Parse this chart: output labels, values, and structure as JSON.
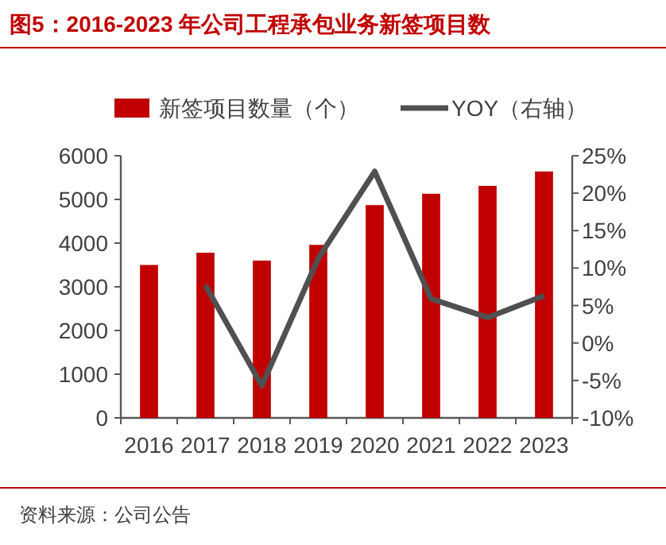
{
  "chart_data": {
    "type": "bar",
    "title": "图5：2016-2023 年公司工程承包业务新签项目数",
    "categories": [
      "2016",
      "2017",
      "2018",
      "2019",
      "2020",
      "2021",
      "2022",
      "2023"
    ],
    "series": [
      {
        "name": "新签项目数量（个）",
        "color": "#c00000",
        "values": [
          3500,
          3780,
          3600,
          3960,
          4870,
          5130,
          5310,
          5640
        ]
      },
      {
        "name": "YOY（右轴）",
        "type": "line",
        "axis": "y2",
        "color": "#505050",
        "values": [
          null,
          7.7,
          -5.7,
          11.3,
          22.9,
          5.9,
          3.4,
          6.3
        ]
      }
    ],
    "ylim": [
      0,
      6000
    ],
    "yticks": [
      0,
      1000,
      2000,
      3000,
      4000,
      5000,
      6000
    ],
    "y2lim": [
      -10,
      25
    ],
    "y2ticks": [
      {
        "value": -10,
        "label": "-10%"
      },
      {
        "value": -5,
        "label": "-5%"
      },
      {
        "value": 0,
        "label": "0%"
      },
      {
        "value": 5,
        "label": "5%"
      },
      {
        "value": 10,
        "label": "10%"
      },
      {
        "value": 15,
        "label": "15%"
      },
      {
        "value": 20,
        "label": "20%"
      },
      {
        "value": 25,
        "label": "25%"
      }
    ],
    "legend": "top",
    "marker": "none",
    "grid": false,
    "annotations": [
      "资料来源：公司公告"
    ]
  }
}
